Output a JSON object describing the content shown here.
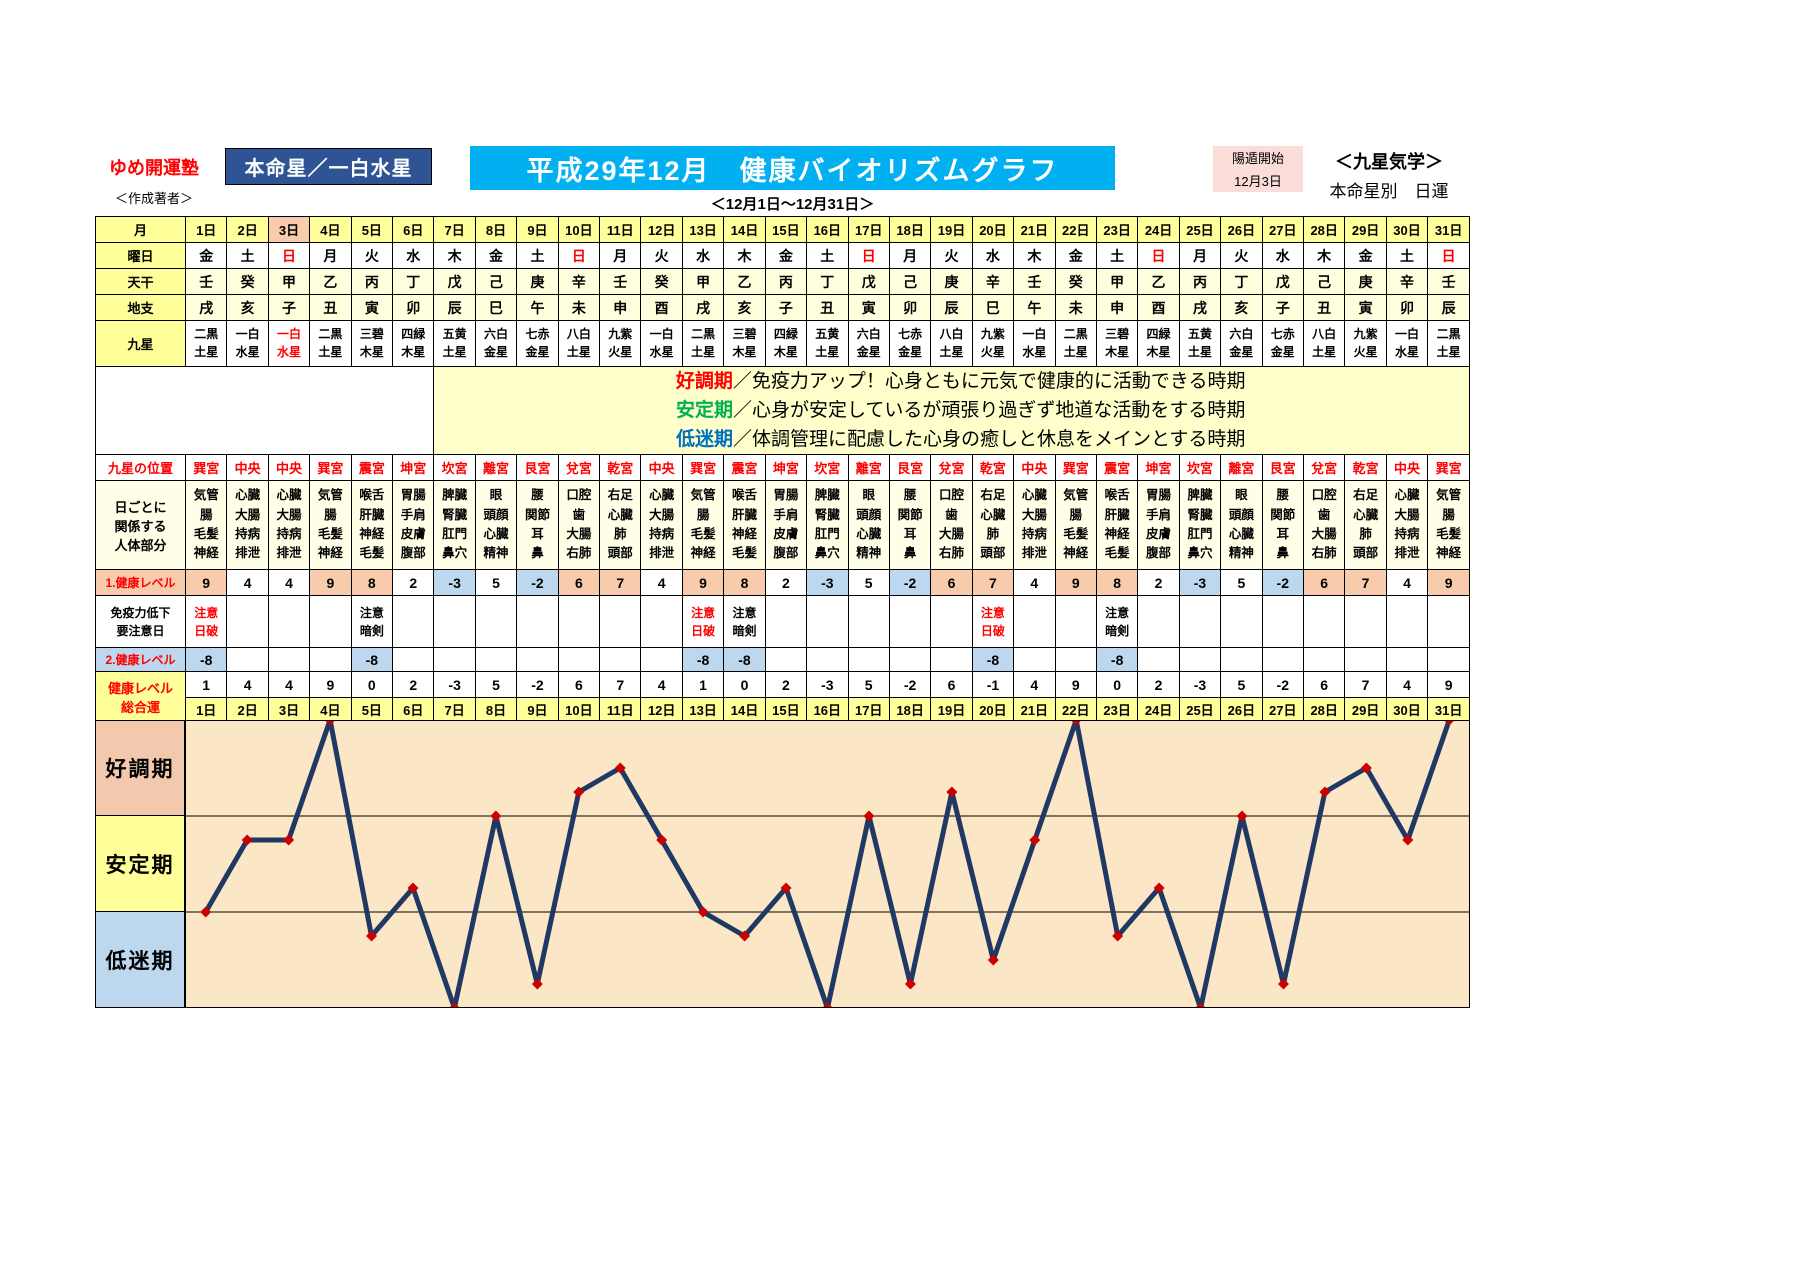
{
  "header": {
    "brand": "ゆめ開運塾",
    "author_label": "＜作成著者＞",
    "honmeisei": "本命星／一白水星",
    "title": "平成29年12月　健康バイオリズムグラフ",
    "yoton_label": "陽遁開始",
    "yoton_date": "12月3日",
    "kigaku": "＜九星気学＞",
    "nichiun": "本命星別　日運",
    "period": "＜12月1日～12月31日＞"
  },
  "legend": {
    "items": [
      {
        "term": "好調期",
        "color": "#ff0000",
        "desc": "／免疫力アップ！心身ともに元気で健康的に活動できる時期"
      },
      {
        "term": "安定期",
        "color": "#00b050",
        "desc": "／心身が安定しているが頑張り過ぎず地道な活動をする時期"
      },
      {
        "term": "低迷期",
        "color": "#0070c0",
        "desc": "／体調管理に配慮した心身の癒しと休息をメインとする時期"
      }
    ]
  },
  "table": {
    "row_labels": {
      "month": "月",
      "weekday": "曜日",
      "tenkan": "天干",
      "chishi": "地支",
      "kyusei": "九星",
      "position": "九星の位置",
      "body": "日ごとに\n関係する\n人体部分",
      "level1": "1.健康レベル",
      "caution": "免疫力低下\n要注意日",
      "level2": "2.健康レベル",
      "total": "健康レベル\n総合運"
    },
    "yoton_day_index": 2,
    "sunday_char": "日",
    "days": [
      "1日",
      "2日",
      "3日",
      "4日",
      "5日",
      "6日",
      "7日",
      "8日",
      "9日",
      "10日",
      "11日",
      "12日",
      "13日",
      "14日",
      "15日",
      "16日",
      "17日",
      "18日",
      "19日",
      "20日",
      "21日",
      "22日",
      "23日",
      "24日",
      "25日",
      "26日",
      "27日",
      "28日",
      "29日",
      "30日",
      "31日"
    ],
    "weekdays": [
      "金",
      "土",
      "日",
      "月",
      "火",
      "水",
      "木",
      "金",
      "土",
      "日",
      "月",
      "火",
      "水",
      "木",
      "金",
      "土",
      "日",
      "月",
      "火",
      "水",
      "木",
      "金",
      "土",
      "日",
      "月",
      "火",
      "水",
      "木",
      "金",
      "土",
      "日"
    ],
    "tenkan": [
      "壬",
      "癸",
      "甲",
      "乙",
      "丙",
      "丁",
      "戊",
      "己",
      "庚",
      "辛",
      "壬",
      "癸",
      "甲",
      "乙",
      "丙",
      "丁",
      "戊",
      "己",
      "庚",
      "辛",
      "壬",
      "癸",
      "甲",
      "乙",
      "丙",
      "丁",
      "戊",
      "己",
      "庚",
      "辛",
      "壬"
    ],
    "chishi": [
      "戌",
      "亥",
      "子",
      "丑",
      "寅",
      "卯",
      "辰",
      "巳",
      "午",
      "未",
      "申",
      "酉",
      "戌",
      "亥",
      "子",
      "丑",
      "寅",
      "卯",
      "辰",
      "巳",
      "午",
      "未",
      "申",
      "酉",
      "戌",
      "亥",
      "子",
      "丑",
      "寅",
      "卯",
      "辰"
    ],
    "kyusei": [
      "二黒\n土星",
      "一白\n水星",
      "一白\n水星",
      "二黒\n土星",
      "三碧\n木星",
      "四緑\n木星",
      "五黄\n土星",
      "六白\n金星",
      "七赤\n金星",
      "八白\n土星",
      "九紫\n火星",
      "一白\n水星",
      "二黒\n土星",
      "三碧\n木星",
      "四緑\n木星",
      "五黄\n土星",
      "六白\n金星",
      "七赤\n金星",
      "八白\n土星",
      "九紫\n火星",
      "一白\n水星",
      "二黒\n土星",
      "三碧\n木星",
      "四緑\n木星",
      "五黄\n土星",
      "六白\n金星",
      "七赤\n金星",
      "八白\n土星",
      "九紫\n火星",
      "一白\n水星",
      "二黒\n土星"
    ],
    "positions": [
      "巽宮",
      "中央",
      "中央",
      "巽宮",
      "震宮",
      "坤宮",
      "坎宮",
      "離宮",
      "艮宮",
      "兌宮",
      "乾宮",
      "中央",
      "巽宮",
      "震宮",
      "坤宮",
      "坎宮",
      "離宮",
      "艮宮",
      "兌宮",
      "乾宮",
      "中央",
      "巽宮",
      "震宮",
      "坤宮",
      "坎宮",
      "離宮",
      "艮宮",
      "兌宮",
      "乾宮",
      "中央",
      "巽宮"
    ],
    "body_parts": [
      "気管\n腸\n毛髪\n神経",
      "心臓\n大腸\n持病\n排泄",
      "心臓\n大腸\n持病\n排泄",
      "気管\n腸\n毛髪\n神経",
      "喉舌\n肝臓\n神経\n毛髪",
      "胃腸\n手肩\n皮膚\n腹部",
      "脾臓\n腎臓\n肛門\n鼻穴",
      "眼\n頭顔\n心臓\n精神",
      "腰\n関節\n耳\n鼻",
      "口腔\n歯\n大腸\n右肺",
      "右足\n心臓\n肺\n頭部",
      "心臓\n大腸\n持病\n排泄",
      "気管\n腸\n毛髪\n神経",
      "喉舌\n肝臓\n神経\n毛髪",
      "胃腸\n手肩\n皮膚\n腹部",
      "脾臓\n腎臓\n肛門\n鼻穴",
      "眼\n頭顔\n心臓\n精神",
      "腰\n関節\n耳\n鼻",
      "口腔\n歯\n大腸\n右肺",
      "右足\n心臓\n肺\n頭部",
      "心臓\n大腸\n持病\n排泄",
      "気管\n腸\n毛髪\n神経",
      "喉舌\n肝臓\n神経\n毛髪",
      "胃腸\n手肩\n皮膚\n腹部",
      "脾臓\n腎臓\n肛門\n鼻穴",
      "眼\n頭顔\n心臓\n精神",
      "腰\n関節\n耳\n鼻",
      "口腔\n歯\n大腸\n右肺",
      "右足\n心臓\n肺\n頭部",
      "心臓\n大腸\n持病\n排泄",
      "気管\n腸\n毛髪\n神経"
    ],
    "level1": [
      9,
      4,
      4,
      9,
      8,
      2,
      -3,
      5,
      -2,
      6,
      7,
      4,
      9,
      8,
      2,
      -3,
      5,
      -2,
      6,
      7,
      4,
      9,
      8,
      2,
      -3,
      5,
      -2,
      6,
      7,
      4,
      9
    ],
    "caution": [
      "注意\n日破",
      "",
      "",
      "",
      "注意\n暗剣",
      "",
      "",
      "",
      "",
      "",
      "",
      "",
      "注意\n日破",
      "注意\n暗剣",
      "",
      "",
      "",
      "",
      "",
      "注意\n日破",
      "",
      "",
      "注意\n暗剣",
      "",
      "",
      "",
      "",
      "",
      "",
      "",
      ""
    ],
    "level2": [
      "-8",
      "",
      "",
      "",
      "-8",
      "",
      "",
      "",
      "",
      "",
      "",
      "",
      "-8",
      "-8",
      "",
      "",
      "",
      "",
      "",
      "-8",
      "",
      "",
      "-8",
      "",
      "",
      "",
      "",
      "",
      "",
      "",
      ""
    ],
    "total": [
      1,
      4,
      4,
      9,
      0,
      2,
      -3,
      5,
      -2,
      6,
      7,
      4,
      1,
      0,
      2,
      -3,
      5,
      -2,
      6,
      -1,
      4,
      9,
      0,
      2,
      -3,
      5,
      -2,
      6,
      7,
      4,
      9
    ]
  },
  "chart_data": {
    "type": "line",
    "title": "健康バイオリズムグラフ（健康レベル総合運）",
    "x_labels": [
      "1日",
      "2日",
      "3日",
      "4日",
      "5日",
      "6日",
      "7日",
      "8日",
      "9日",
      "10日",
      "11日",
      "12日",
      "13日",
      "14日",
      "15日",
      "16日",
      "17日",
      "18日",
      "19日",
      "20日",
      "21日",
      "22日",
      "23日",
      "24日",
      "25日",
      "26日",
      "27日",
      "28日",
      "29日",
      "30日",
      "31日"
    ],
    "values": [
      1,
      4,
      4,
      9,
      0,
      2,
      -3,
      5,
      -2,
      6,
      7,
      4,
      1,
      0,
      2,
      -3,
      5,
      -2,
      6,
      -1,
      4,
      9,
      0,
      2,
      -3,
      5,
      -2,
      6,
      7,
      4,
      9
    ],
    "ylim": [
      -3,
      9
    ],
    "grid": false,
    "bands": [
      {
        "label": "好調期",
        "range": [
          5,
          9
        ],
        "label_bg": "#f2c9ac"
      },
      {
        "label": "安定期",
        "range": [
          1,
          5
        ],
        "label_bg": "#ffff99"
      },
      {
        "label": "低迷期",
        "range": [
          -3,
          1
        ],
        "label_bg": "#bdd7ee"
      }
    ],
    "line_color": "#1f3864",
    "marker_color": "#cc0000",
    "plot_bg": "#fbe7c6"
  }
}
